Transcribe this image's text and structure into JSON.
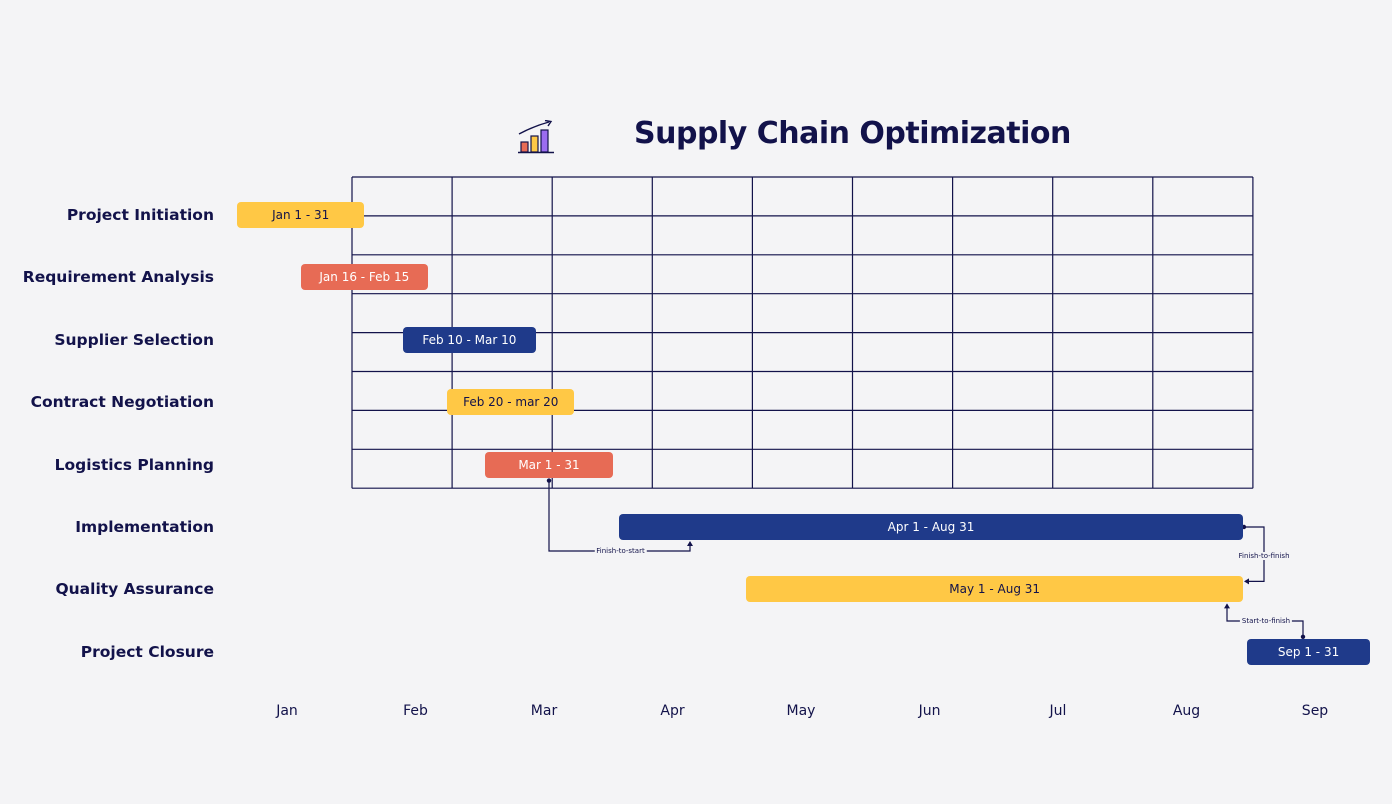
{
  "chart_data": {
    "type": "gantt",
    "title": "Supply Chain Optimization",
    "title_icon": "bar-chart-growth-icon",
    "months": [
      "Jan",
      "Feb",
      "Mar",
      "Apr",
      "May",
      "Jun",
      "Jul",
      "Aug",
      "Sep"
    ],
    "grid": {
      "columns": 9,
      "rows": 8,
      "color": "#12124a"
    },
    "colors": {
      "yellow": "#ffc845",
      "coral": "#e76b55",
      "navy": "#1f3a8a",
      "text_dark": "#12124a"
    },
    "tasks": [
      {
        "name": "Project Initiation",
        "label": "Jan 1 - 31",
        "start": 0.0,
        "end": 1.0,
        "color": "yellow",
        "text_color": "#12124a"
      },
      {
        "name": "Requirement Analysis",
        "label": "Jan 16 - Feb 15",
        "start": 0.5,
        "end": 1.5,
        "color": "coral",
        "text_color": "#ffffff"
      },
      {
        "name": "Supplier Selection",
        "label": "Feb 10 - Mar 10",
        "start": 1.3,
        "end": 2.35,
        "color": "navy",
        "text_color": "#ffffff"
      },
      {
        "name": "Contract Negotiation",
        "label": "Feb 20 - mar 20",
        "start": 1.65,
        "end": 2.65,
        "color": "yellow",
        "text_color": "#12124a"
      },
      {
        "name": "Logistics Planning",
        "label": "Mar 1 - 31",
        "start": 1.95,
        "end": 2.95,
        "color": "coral",
        "text_color": "#ffffff"
      },
      {
        "name": "Implementation",
        "label": "Apr 1 - Aug 31",
        "start": 3.0,
        "end": 7.9,
        "color": "navy",
        "text_color": "#ffffff"
      },
      {
        "name": "Quality Assurance",
        "label": "May 1 - Aug 31",
        "start": 4.0,
        "end": 7.9,
        "color": "yellow",
        "text_color": "#12124a"
      },
      {
        "name": "Project Closure",
        "label": "Sep 1 - 31",
        "start": 7.93,
        "end": 8.9,
        "color": "navy",
        "text_color": "#ffffff"
      }
    ],
    "dependencies": [
      {
        "from": "Logistics Planning",
        "to": "Implementation",
        "type": "Finish-to-start"
      },
      {
        "from": "Implementation",
        "to": "Quality Assurance",
        "type": "Finish-to-finish"
      },
      {
        "from": "Project Closure",
        "to": "Quality Assurance",
        "type": "Start-to-finish"
      }
    ]
  }
}
